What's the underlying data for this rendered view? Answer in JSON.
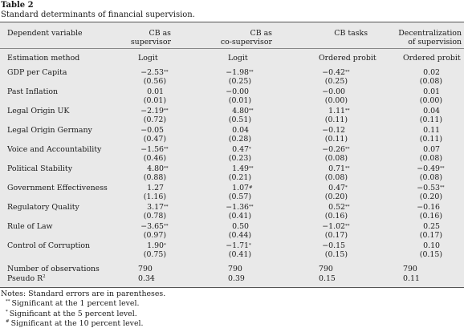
{
  "table": {
    "number": "Table 2",
    "title": "Standard determinants of financial supervision.",
    "columns": [
      {
        "label": [
          "Dependent variable"
        ]
      },
      {
        "label": [
          "CB as",
          "supervisor"
        ]
      },
      {
        "label": [
          "CB as",
          "co-supervisor"
        ]
      },
      {
        "label": [
          "CB tasks"
        ]
      },
      {
        "label": [
          "Decentralization",
          "of supervision"
        ]
      }
    ],
    "method_label": "Estimation method",
    "methods": [
      "Logit",
      "Logit",
      "Ordered probit",
      "Ordered probit"
    ],
    "rows": [
      {
        "name": "GDP per Capita",
        "coef": [
          {
            "v": "−2.53",
            "s": "**"
          },
          {
            "v": "−1.98",
            "s": "**"
          },
          {
            "v": "−0.42",
            "s": "**"
          },
          {
            "v": "0.02",
            "s": ""
          }
        ],
        "se": [
          "(0.56)",
          "(0.25)",
          "(0.25)",
          "(0.08)"
        ]
      },
      {
        "name": "Past Inflation",
        "coef": [
          {
            "v": "0.01",
            "s": ""
          },
          {
            "v": "−0.00",
            "s": ""
          },
          {
            "v": "−0.00",
            "s": ""
          },
          {
            "v": "0.01",
            "s": ""
          }
        ],
        "se": [
          "(0.01)",
          "(0.01)",
          "(0.00)",
          "(0.00)"
        ]
      },
      {
        "name": "Legal Origin UK",
        "coef": [
          {
            "v": "−2.19",
            "s": "**"
          },
          {
            "v": "4.80",
            "s": "**"
          },
          {
            "v": "1.11",
            "s": "**"
          },
          {
            "v": "0.04",
            "s": ""
          }
        ],
        "se": [
          "(0.72)",
          "(0.51)",
          "(0.11)",
          "(0.11)"
        ]
      },
      {
        "name": "Legal Origin Germany",
        "coef": [
          {
            "v": "−0.05",
            "s": ""
          },
          {
            "v": "0.04",
            "s": ""
          },
          {
            "v": "−0.12",
            "s": ""
          },
          {
            "v": "0.11",
            "s": ""
          }
        ],
        "se": [
          "(0.47)",
          "(0.28)",
          "(0.11)",
          "(0.11)"
        ]
      },
      {
        "name": "Voice and Accountability",
        "coef": [
          {
            "v": "−1.56",
            "s": "**"
          },
          {
            "v": "0.47",
            "s": "*"
          },
          {
            "v": "−0.26",
            "s": "**"
          },
          {
            "v": "0.07",
            "s": ""
          }
        ],
        "se": [
          "(0.46)",
          "(0.23)",
          "(0.08)",
          "(0.08)"
        ]
      },
      {
        "name": "Political Stability",
        "coef": [
          {
            "v": "4.80",
            "s": "**"
          },
          {
            "v": "1.49",
            "s": "**"
          },
          {
            "v": "0.71",
            "s": "**"
          },
          {
            "v": "−0.49",
            "s": "**"
          }
        ],
        "se": [
          "(0.88)",
          "(0.21)",
          "(0.08)",
          "(0.08)"
        ]
      },
      {
        "name": "Government Effectiveness",
        "coef": [
          {
            "v": "1.27",
            "s": ""
          },
          {
            "v": "1.07",
            "s": "#"
          },
          {
            "v": "0.47",
            "s": "*"
          },
          {
            "v": "−0.53",
            "s": "**"
          }
        ],
        "se": [
          "(1.16)",
          "(0.57)",
          "(0.20)",
          "(0.20)"
        ]
      },
      {
        "name": "Regulatory Quality",
        "coef": [
          {
            "v": "3.17",
            "s": "**"
          },
          {
            "v": "−1.36",
            "s": "**"
          },
          {
            "v": "0.52",
            "s": "**"
          },
          {
            "v": "−0.16",
            "s": ""
          }
        ],
        "se": [
          "(0.78)",
          "(0.41)",
          "(0.16)",
          "(0.16)"
        ]
      },
      {
        "name": "Rule of Law",
        "coef": [
          {
            "v": "−3.65",
            "s": "**"
          },
          {
            "v": "0.50",
            "s": ""
          },
          {
            "v": "−1.02",
            "s": "**"
          },
          {
            "v": "0.25",
            "s": ""
          }
        ],
        "se": [
          "(0.97)",
          "(0.44)",
          "(0.17)",
          "(0.17)"
        ]
      },
      {
        "name": "Control of Corruption",
        "coef": [
          {
            "v": "1.90",
            "s": "*"
          },
          {
            "v": "−1.71",
            "s": "*"
          },
          {
            "v": "−0.15",
            "s": ""
          },
          {
            "v": "0.10",
            "s": ""
          }
        ],
        "se": [
          "(0.75)",
          "(0.41)",
          "(0.15)",
          "(0.15)"
        ]
      }
    ],
    "footer_rows": [
      {
        "name": "Number of observations",
        "values": [
          "790",
          "790",
          "790",
          "790"
        ]
      },
      {
        "name": "Pseudo R",
        "sup": "2",
        "values": [
          "0.34",
          "0.39",
          "0.15",
          "0.11"
        ]
      }
    ]
  },
  "notes": {
    "main": "Notes: Standard errors are in parentheses.",
    "items": [
      {
        "mark": "**",
        "text": "Significant at the 1 percent level."
      },
      {
        "mark": "*",
        "text": "Significant at the 5 percent level."
      },
      {
        "mark": "#",
        "text": "Significant at the 10 percent level."
      }
    ]
  }
}
